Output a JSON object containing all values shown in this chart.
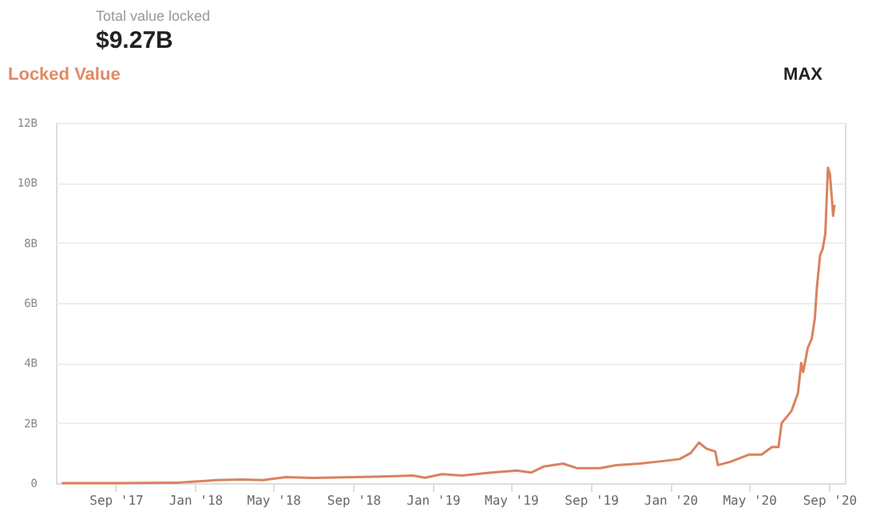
{
  "chart_data": {
    "type": "line",
    "title": "Total value locked",
    "subtitle": "$9.27B",
    "annotations": [
      "Locked Value",
      "MAX"
    ],
    "x": [
      "2017-06-10",
      "2017-09-01",
      "2017-12-01",
      "2018-01-01",
      "2018-02-01",
      "2018-03-15",
      "2018-04-15",
      "2018-05-20",
      "2018-07-01",
      "2018-09-01",
      "2018-10-15",
      "2018-12-01",
      "2018-12-20",
      "2019-01-15",
      "2019-02-15",
      "2019-04-01",
      "2019-05-10",
      "2019-06-01",
      "2019-06-20",
      "2019-07-20",
      "2019-08-10",
      "2019-09-15",
      "2019-10-10",
      "2019-11-15",
      "2019-12-15",
      "2020-01-15",
      "2020-02-01",
      "2020-02-14",
      "2020-02-25",
      "2020-03-10",
      "2020-03-14",
      "2020-04-01",
      "2020-05-01",
      "2020-05-20",
      "2020-06-05",
      "2020-06-15",
      "2020-06-20",
      "2020-07-05",
      "2020-07-15",
      "2020-07-20",
      "2020-07-23",
      "2020-07-30",
      "2020-08-05",
      "2020-08-10",
      "2020-08-13",
      "2020-08-18",
      "2020-08-22",
      "2020-08-26",
      "2020-08-30",
      "2020-09-02",
      "2020-09-05",
      "2020-09-07",
      "2020-09-09"
    ],
    "series": [
      {
        "color": "#d9825f",
        "values": [
          0,
          0,
          0.01,
          0.05,
          0.1,
          0.12,
          0.1,
          0.2,
          0.17,
          0.2,
          0.22,
          0.25,
          0.18,
          0.3,
          0.25,
          0.35,
          0.42,
          0.35,
          0.55,
          0.65,
          0.5,
          0.5,
          0.6,
          0.65,
          0.72,
          0.8,
          1.0,
          1.35,
          1.15,
          1.05,
          0.6,
          0.7,
          0.95,
          0.95,
          1.2,
          1.2,
          2.0,
          2.4,
          3.0,
          4.0,
          3.7,
          4.5,
          4.8,
          5.5,
          6.5,
          7.6,
          7.8,
          8.3,
          10.5,
          10.3,
          9.5,
          8.9,
          9.27
        ]
      }
    ],
    "xlim": [
      "2017-06-01",
      "2020-09-25"
    ],
    "xticks": [
      {
        "value": "2017-09-01",
        "label": "Sep '17"
      },
      {
        "value": "2018-01-01",
        "label": "Jan '18"
      },
      {
        "value": "2018-05-01",
        "label": "May '18"
      },
      {
        "value": "2018-09-01",
        "label": "Sep '18"
      },
      {
        "value": "2019-01-01",
        "label": "Jan '19"
      },
      {
        "value": "2019-05-01",
        "label": "May '19"
      },
      {
        "value": "2019-09-01",
        "label": "Sep '19"
      },
      {
        "value": "2020-01-01",
        "label": "Jan '20"
      },
      {
        "value": "2020-05-01",
        "label": "May '20"
      },
      {
        "value": "2020-09-01",
        "label": "Sep '20"
      }
    ],
    "ylim": [
      0,
      12
    ],
    "yticks": [
      0,
      {
        "value": 2,
        "label": "2B"
      },
      {
        "value": 4,
        "label": "4B"
      },
      {
        "value": 6,
        "label": "6B"
      },
      {
        "value": 8,
        "label": "8B"
      },
      {
        "value": 10,
        "label": "10B"
      },
      {
        "value": 12,
        "label": "12B"
      }
    ],
    "grid": "y",
    "marker": "none",
    "line_style": "solid"
  }
}
